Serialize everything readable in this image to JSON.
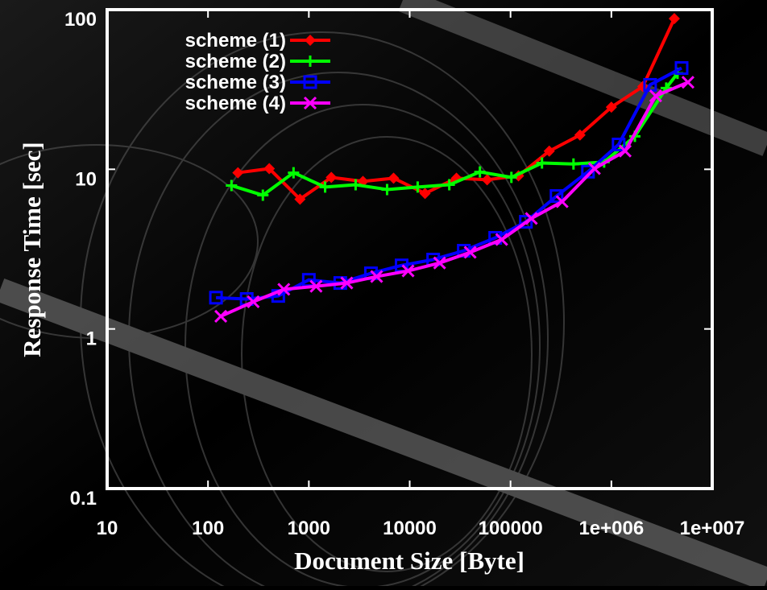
{
  "chart_data": {
    "type": "line",
    "xlabel": "Document Size [Byte]",
    "ylabel": "Response Time [sec]",
    "xscale": "log",
    "yscale": "log",
    "xlim": [
      10,
      10000000
    ],
    "ylim": [
      0.1,
      100
    ],
    "xticks": [
      10,
      100,
      1000,
      10000,
      100000,
      {
        "value": 1000000,
        "label": "1e+006"
      },
      {
        "value": 10000000,
        "label": "1e+007"
      }
    ],
    "yticks": [
      0.1,
      1,
      10,
      100
    ],
    "grid": false,
    "legend": "top-left",
    "series": [
      {
        "name": "scheme (1)",
        "color": "#ff0000",
        "marker": "diamond",
        "x": [
          198,
          405,
          817,
          1670,
          3440,
          6920,
          14200,
          29100,
          58600,
          120000,
          242000,
          488000,
          1000000,
          2050000,
          4210000
        ],
        "values": [
          9.52,
          10.1,
          6.5,
          8.9,
          8.4,
          8.8,
          7.06,
          8.8,
          8.6,
          9.1,
          13.0,
          16.4,
          24.5,
          33,
          87.9
        ]
      },
      {
        "name": "scheme (2)",
        "color": "#00ff00",
        "marker": "plus",
        "x": [
          171,
          350,
          705,
          1450,
          2910,
          5970,
          12000,
          24700,
          49700,
          102000,
          205000,
          421000,
          847000,
          1710000,
          3500000,
          4530000
        ],
        "values": [
          7.91,
          6.88,
          9.52,
          7.74,
          8.0,
          7.47,
          7.74,
          8.0,
          9.63,
          8.9,
          10.95,
          10.8,
          11.1,
          16.1,
          32.3,
          39.9
        ]
      },
      {
        "name": "scheme (3)",
        "color": "#0000ff",
        "marker": "square",
        "x": [
          120,
          242,
          497,
          1000,
          2050,
          4130,
          8320,
          17100,
          34400,
          70500,
          142000,
          286000,
          586000,
          1180000,
          2420000,
          4970000
        ],
        "values": [
          1.57,
          1.54,
          1.61,
          2.03,
          1.94,
          2.23,
          2.5,
          2.72,
          3.09,
          3.72,
          4.69,
          6.8,
          9.66,
          14.3,
          33.8,
          43.1
        ]
      },
      {
        "name": "scheme (4)",
        "color": "#ff00ff",
        "marker": "cross",
        "x": [
          134,
          281,
          565,
          1180,
          2380,
          4700,
          9640,
          19800,
          39800,
          81700,
          161000,
          325000,
          679000,
          1370000,
          2750000,
          5750000
        ],
        "values": [
          1.2,
          1.48,
          1.77,
          1.85,
          1.94,
          2.13,
          2.31,
          2.59,
          3.02,
          3.63,
          4.92,
          6.27,
          10.1,
          13.0,
          28.8,
          35.1
        ]
      }
    ]
  }
}
